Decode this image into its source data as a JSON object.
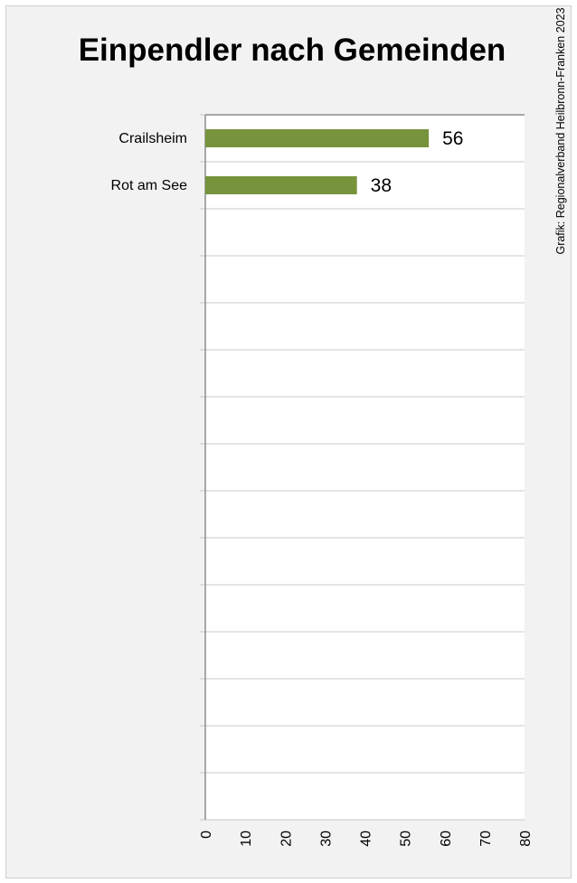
{
  "chart_data": {
    "type": "bar",
    "orientation": "horizontal",
    "title": "Einpendler nach Gemeinden",
    "categories": [
      "Crailsheim",
      "Rot am See"
    ],
    "values": [
      56,
      38
    ],
    "data_labels": [
      "56",
      "38"
    ],
    "xlabel": "",
    "ylabel": "",
    "xlim": [
      0,
      80
    ],
    "x_ticks": [
      "0",
      "10",
      "20",
      "30",
      "40",
      "50",
      "60",
      "70",
      "80"
    ],
    "row_count": 15,
    "grid": "horizontal",
    "legend": "none",
    "bar_color": "#77933c",
    "source": "Grafik: Regionalverband Heilbronn-Franken 2023"
  }
}
